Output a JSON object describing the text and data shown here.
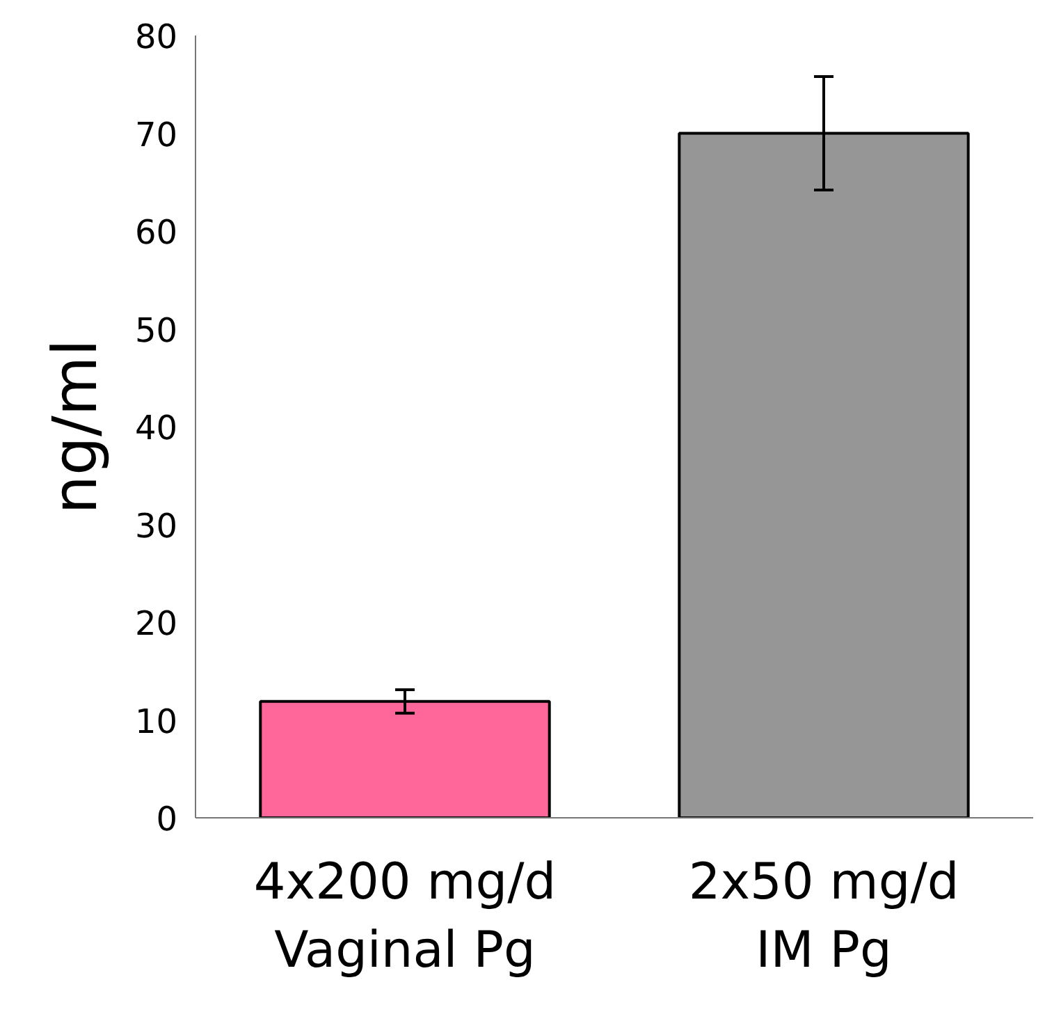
{
  "chart_data": {
    "type": "bar",
    "ylabel": "ng/ml",
    "categories": [
      "4x200 mg/d\nVaginal Pg",
      "2x50 mg/d\nIM Pg"
    ],
    "values": [
      11.9,
      70
    ],
    "colors": [
      "#ff6699",
      "#969696"
    ],
    "errors": [
      1.2,
      5.8
    ],
    "ylim": [
      0,
      80
    ],
    "yticks": [
      0,
      10,
      20,
      30,
      40,
      50,
      60,
      70,
      80
    ],
    "grid": false
  }
}
